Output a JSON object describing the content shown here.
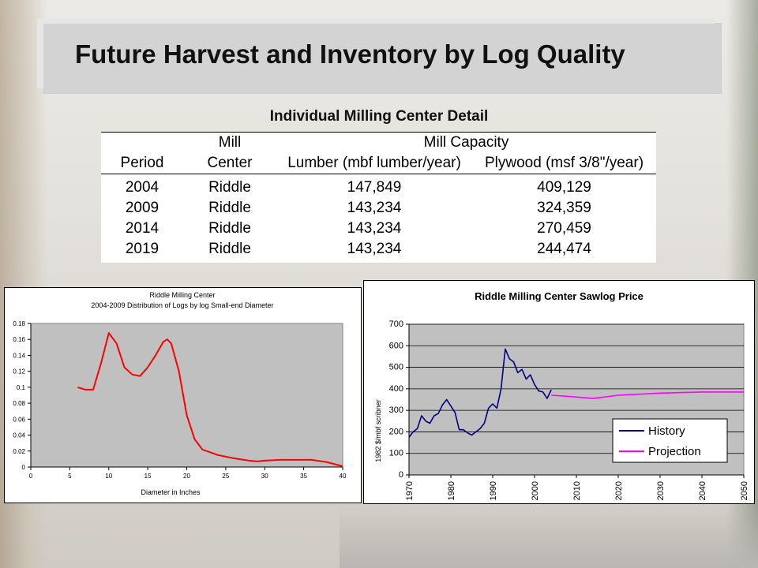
{
  "slide": {
    "title": "Future Harvest and Inventory by Log Quality",
    "subtitle": "Individual Milling Center Detail"
  },
  "table": {
    "header_row1": [
      "",
      "Mill",
      "Mill Capacity",
      ""
    ],
    "headers": [
      "Period",
      "Center",
      "Lumber (mbf lumber/year)",
      "Plywood (msf 3/8\"/year)"
    ],
    "rows": [
      [
        "2004",
        "Riddle",
        "147,849",
        "409,129"
      ],
      [
        "2009",
        "Riddle",
        "143,234",
        "324,359"
      ],
      [
        "2014",
        "Riddle",
        "143,234",
        "270,459"
      ],
      [
        "2019",
        "Riddle",
        "143,234",
        "244,474"
      ]
    ]
  },
  "chart_data": [
    {
      "type": "line",
      "title": "Riddle Milling Center",
      "subtitle": "2004-2009 Distribution of Logs by log Small-end Diameter",
      "xlabel": "Diameter in Inches",
      "ylabel": "",
      "xlim": [
        0,
        40
      ],
      "ylim": [
        0,
        0.18
      ],
      "xticks": [
        "0",
        "5",
        "10",
        "15",
        "20",
        "25",
        "30",
        "35",
        "40"
      ],
      "yticks": [
        "0",
        "0.02",
        "0.04",
        "0.06",
        "0.08",
        "0.1",
        "0.12",
        "0.14",
        "0.16",
        "0.18"
      ],
      "grid": false,
      "legend": "none",
      "colors": {
        "plot_bg": "#c0c0c0",
        "series": "#ff0000"
      },
      "series": [
        {
          "name": "",
          "x": [
            6,
            7,
            8,
            9,
            10,
            11,
            12,
            13,
            14,
            15,
            16,
            17,
            17.5,
            18,
            19,
            20,
            21,
            22,
            24,
            26,
            28,
            29,
            30,
            32,
            34,
            36,
            38,
            40
          ],
          "y": [
            0.1,
            0.097,
            0.097,
            0.13,
            0.168,
            0.155,
            0.125,
            0.116,
            0.114,
            0.125,
            0.14,
            0.157,
            0.16,
            0.155,
            0.12,
            0.065,
            0.035,
            0.022,
            0.015,
            0.011,
            0.008,
            0.007,
            0.008,
            0.009,
            0.009,
            0.009,
            0.006,
            0.001
          ]
        }
      ]
    },
    {
      "type": "line",
      "title": "Riddle Milling Center Sawlog Price",
      "xlabel": "",
      "ylabel": "1982 $/mbf scribner",
      "xlim": [
        1970,
        2050
      ],
      "ylim": [
        0,
        700
      ],
      "xticks": [
        "1970",
        "1980",
        "1990",
        "2000",
        "2010",
        "2020",
        "2030",
        "2040",
        "2050"
      ],
      "yticks": [
        "0",
        "100",
        "200",
        "300",
        "400",
        "500",
        "600",
        "700"
      ],
      "grid": true,
      "legend": "bottom-right",
      "colors": {
        "plot_bg": "#c0c0c0",
        "history": "#000080",
        "projection": "#ff00ff"
      },
      "series": [
        {
          "name": "History",
          "x": [
            1970,
            1971,
            1972,
            1973,
            1974,
            1975,
            1976,
            1977,
            1978,
            1979,
            1980,
            1981,
            1982,
            1983,
            1984,
            1985,
            1986,
            1987,
            1988,
            1989,
            1990,
            1991,
            1992,
            1993,
            1994,
            1995,
            1996,
            1997,
            1998,
            1999,
            2000,
            2001,
            2002,
            2003,
            2004
          ],
          "y": [
            175,
            200,
            215,
            275,
            250,
            240,
            275,
            285,
            325,
            350,
            320,
            290,
            210,
            210,
            195,
            185,
            200,
            215,
            240,
            310,
            330,
            310,
            400,
            585,
            540,
            525,
            475,
            490,
            445,
            465,
            420,
            390,
            385,
            355,
            395
          ]
        },
        {
          "name": "Projection",
          "x": [
            2004,
            2008,
            2014,
            2020,
            2025,
            2030,
            2040,
            2050
          ],
          "y": [
            370,
            365,
            355,
            370,
            375,
            380,
            385,
            385
          ]
        }
      ]
    }
  ]
}
